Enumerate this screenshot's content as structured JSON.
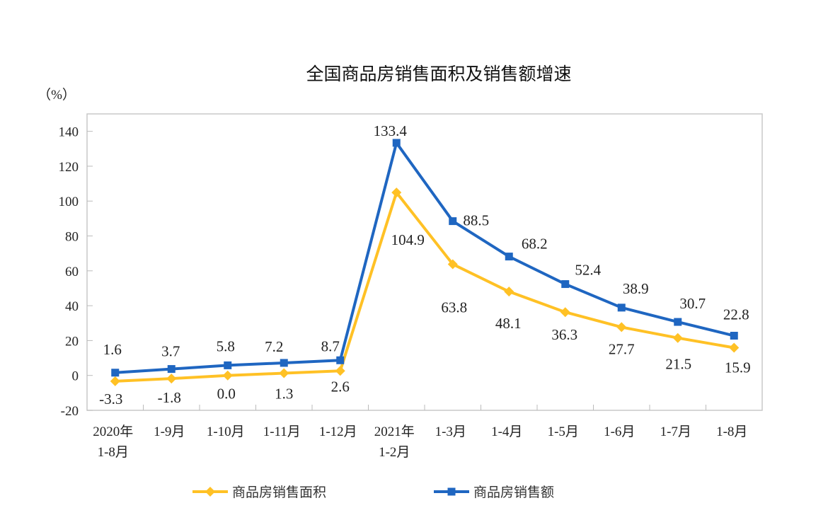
{
  "chart_data": {
    "type": "line",
    "title": "全国商品房销售面积及销售额增速",
    "ylabel": "（%）",
    "xlabel": "",
    "ylim": [
      -20,
      150
    ],
    "yticks": [
      -20,
      0,
      20,
      40,
      60,
      80,
      100,
      120,
      140
    ],
    "grid": false,
    "legend": "bottom",
    "categories": [
      [
        "2020年",
        "1-8月"
      ],
      [
        "1-9月"
      ],
      [
        "1-10月"
      ],
      [
        "1-11月"
      ],
      [
        "1-12月"
      ],
      [
        "2021年",
        "1-2月"
      ],
      [
        "1-3月"
      ],
      [
        "1-4月"
      ],
      [
        "1-5月"
      ],
      [
        "1-6月"
      ],
      [
        "1-7月"
      ],
      [
        "1-8月"
      ]
    ],
    "series": [
      {
        "name": "商品房销售面积",
        "color": "#FFC125",
        "marker": "diamond",
        "values": [
          -3.3,
          -1.8,
          0.0,
          1.3,
          2.6,
          104.9,
          63.8,
          48.1,
          36.3,
          27.7,
          21.5,
          15.9
        ]
      },
      {
        "name": "商品房销售额",
        "color": "#1F66C1",
        "marker": "square",
        "values": [
          1.6,
          3.7,
          5.8,
          7.2,
          8.7,
          133.4,
          88.5,
          68.2,
          52.4,
          38.9,
          30.7,
          22.8
        ]
      }
    ]
  }
}
